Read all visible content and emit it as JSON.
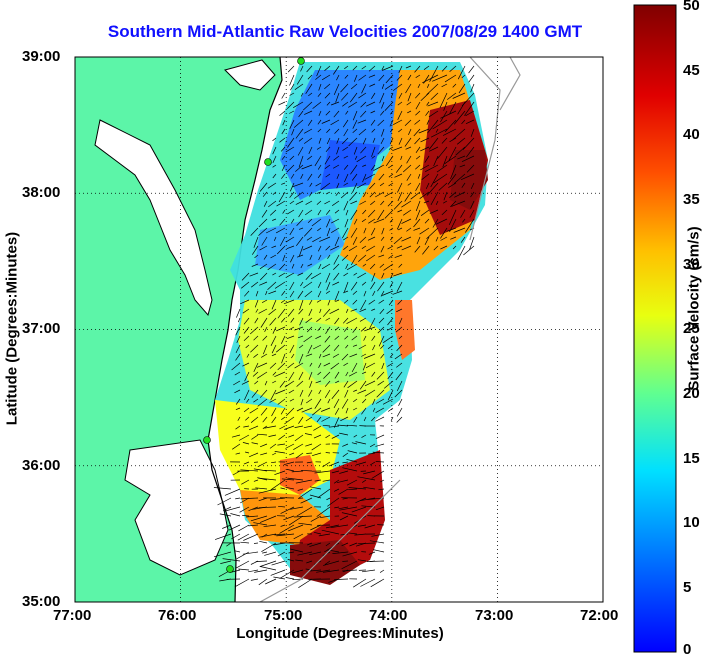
{
  "title": "Southern Mid-Atlantic Raw Velocities 2007/08/29 1400 GMT",
  "x_axis": {
    "label": "Longitude (Degrees:Minutes)",
    "ticks": [
      "77:00",
      "76:00",
      "75:00",
      "74:00",
      "73:00",
      "72:00"
    ]
  },
  "y_axis": {
    "label": "Latitude (Degrees:Minutes)",
    "ticks": [
      "39:00",
      "38:00",
      "37:00",
      "36:00",
      "35:00"
    ]
  },
  "colorbar": {
    "label": "Surface Velocity (cm/s)",
    "ticks": [
      "50",
      "45",
      "40",
      "35",
      "30",
      "25",
      "20",
      "15",
      "10",
      "5",
      "0"
    ],
    "range": [
      0,
      50
    ],
    "colormap": [
      "#0000ff",
      "#00a0ff",
      "#00ffff",
      "#60ff90",
      "#ffff00",
      "#ffa000",
      "#ff2000",
      "#900000"
    ]
  },
  "colors": {
    "land": "#5cf5a8",
    "coastline": "#000000",
    "station": "#22dd22",
    "grid": "#000000",
    "title": "#1010ff"
  },
  "map_extent": {
    "lon": [
      -77,
      -72
    ],
    "lat": [
      35,
      39
    ],
    "grid": "dotted"
  }
}
